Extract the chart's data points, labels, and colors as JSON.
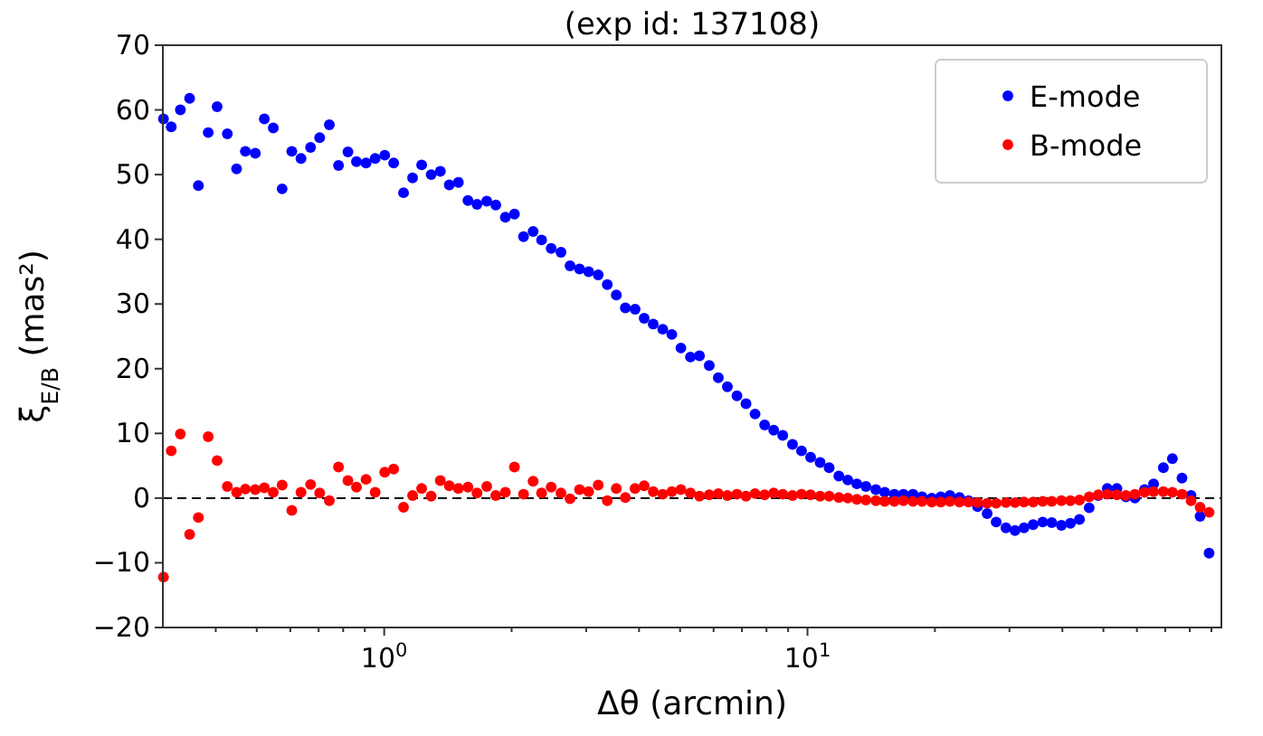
{
  "chart_data": {
    "type": "scatter",
    "title": "(exp id: 137108)",
    "xlabel": "Δθ (arcmin)",
    "ylabel": "ξ$_{E/B}$ (mas²)",
    "log": "x",
    "xlim": [
      0.3,
      95
    ],
    "ylim": [
      -20,
      70
    ],
    "xticks": [
      {
        "value": 0.4,
        "label": null
      },
      {
        "value": 0.5,
        "label": null
      },
      {
        "value": 0.6,
        "label": null
      },
      {
        "value": 0.7,
        "label": null
      },
      {
        "value": 0.8,
        "label": null
      },
      {
        "value": 0.9,
        "label": null
      },
      {
        "value": 1,
        "label": "10$^{0}$"
      },
      {
        "value": 2,
        "label": null
      },
      {
        "value": 3,
        "label": null
      },
      {
        "value": 4,
        "label": null
      },
      {
        "value": 5,
        "label": null
      },
      {
        "value": 6,
        "label": null
      },
      {
        "value": 7,
        "label": null
      },
      {
        "value": 8,
        "label": null
      },
      {
        "value": 9,
        "label": null
      },
      {
        "value": 10,
        "label": "10$^{1}$"
      },
      {
        "value": 20,
        "label": null
      },
      {
        "value": 30,
        "label": null
      },
      {
        "value": 40,
        "label": null
      },
      {
        "value": 50,
        "label": null
      },
      {
        "value": 60,
        "label": null
      },
      {
        "value": 70,
        "label": null
      },
      {
        "value": 80,
        "label": null
      },
      {
        "value": 90,
        "label": null
      }
    ],
    "yticks": [
      -20,
      -10,
      0,
      10,
      20,
      30,
      40,
      50,
      60,
      70
    ],
    "legend": "top right",
    "marker": "circle",
    "grid": false,
    "ref_lines": [
      {
        "axis": "y",
        "value": 0,
        "color": "#000000",
        "line_style": "dashed"
      }
    ],
    "x": [
      0.301,
      0.314,
      0.33,
      0.347,
      0.364,
      0.384,
      0.403,
      0.426,
      0.448,
      0.47,
      0.496,
      0.521,
      0.547,
      0.574,
      0.605,
      0.636,
      0.67,
      0.704,
      0.742,
      0.78,
      0.821,
      0.86,
      0.906,
      0.952,
      1.003,
      1.053,
      1.111,
      1.167,
      1.226,
      1.291,
      1.357,
      1.425,
      1.497,
      1.577,
      1.657,
      1.747,
      1.835,
      1.933,
      2.031,
      2.134,
      2.248,
      2.354,
      2.48,
      2.616,
      2.748,
      2.894,
      3.041,
      3.203,
      3.365,
      3.535,
      3.713,
      3.915,
      4.113,
      4.321,
      4.551,
      4.781,
      5.023,
      5.29,
      5.557,
      5.86,
      6.156,
      6.467,
      6.813,
      7.157,
      7.518,
      7.92,
      8.32,
      8.74,
      9.216,
      9.68,
      10.17,
      10.71,
      11.25,
      11.86,
      12.45,
      13.08,
      13.74,
      14.5,
      15.22,
      16.04,
      16.85,
      17.75,
      18.65,
      19.66,
      20.65,
      21.7,
      22.86,
      24.01,
      25.22,
      26.57,
      27.91,
      29.43,
      30.92,
      32.47,
      34.12,
      35.94,
      37.76,
      39.79,
      41.79,
      43.9,
      46.29,
      48.63,
      51.08,
      53.81,
      56.52,
      59.37,
      62.55,
      65.7,
      69.29,
      72.78,
      76.68,
      80.54,
      84.61,
      88.86
    ],
    "series": [
      {
        "name": "E-mode",
        "color": "#0000ff",
        "values": [
          58.6,
          57.4,
          60.0,
          61.8,
          48.3,
          56.5,
          60.5,
          56.3,
          50.9,
          53.6,
          53.3,
          58.6,
          57.2,
          47.8,
          53.6,
          52.5,
          54.2,
          55.7,
          57.7,
          51.4,
          53.5,
          52.0,
          51.8,
          52.5,
          53.0,
          51.8,
          47.2,
          49.5,
          51.5,
          50.0,
          50.5,
          48.4,
          48.8,
          46.0,
          45.4,
          45.9,
          45.3,
          43.4,
          43.9,
          40.4,
          41.2,
          39.9,
          38.6,
          38.0,
          35.9,
          35.4,
          35.0,
          34.5,
          33.0,
          31.4,
          29.4,
          29.2,
          27.8,
          26.9,
          26.1,
          25.3,
          23.2,
          21.8,
          22.0,
          20.5,
          18.6,
          17.2,
          15.8,
          14.6,
          13.0,
          11.3,
          10.5,
          9.7,
          8.3,
          7.3,
          6.3,
          5.5,
          4.7,
          3.4,
          2.8,
          2.2,
          1.8,
          1.3,
          0.9,
          0.6,
          0.6,
          0.6,
          0.2,
          0.0,
          0.2,
          0.4,
          0.1,
          -0.4,
          -1.3,
          -2.4,
          -3.7,
          -4.6,
          -5.0,
          -4.6,
          -4.1,
          -3.7,
          -3.8,
          -4.2,
          -3.9,
          -3.3,
          -1.5,
          0.4,
          1.5,
          1.5,
          0.2,
          0.0,
          1.3,
          2.2,
          4.7,
          6.1,
          3.1,
          0.4,
          -2.8,
          -8.5
        ]
      },
      {
        "name": "B-mode",
        "color": "#ff0000",
        "values": [
          -12.2,
          7.3,
          9.9,
          -5.6,
          -3.0,
          9.5,
          5.8,
          1.8,
          0.9,
          1.4,
          1.3,
          1.6,
          0.9,
          2.0,
          -1.9,
          0.9,
          2.1,
          0.8,
          -0.4,
          4.8,
          2.7,
          1.7,
          2.9,
          0.9,
          4.0,
          4.5,
          -1.4,
          0.4,
          1.5,
          0.3,
          2.7,
          1.9,
          1.5,
          1.7,
          0.8,
          1.8,
          0.4,
          0.9,
          4.8,
          0.6,
          2.6,
          0.8,
          1.7,
          0.8,
          -0.1,
          1.3,
          1.0,
          2.0,
          -0.4,
          1.5,
          0.1,
          1.5,
          1.9,
          1.0,
          0.6,
          1.0,
          1.3,
          0.8,
          0.3,
          0.5,
          0.7,
          0.4,
          0.6,
          0.3,
          0.7,
          0.5,
          0.8,
          0.6,
          0.4,
          0.6,
          0.5,
          0.3,
          0.3,
          0.1,
          0.0,
          -0.2,
          -0.3,
          -0.4,
          -0.5,
          -0.5,
          -0.4,
          -0.5,
          -0.5,
          -0.6,
          -0.6,
          -0.5,
          -0.6,
          -0.6,
          -0.7,
          -0.8,
          -0.8,
          -0.7,
          -0.7,
          -0.6,
          -0.6,
          -0.5,
          -0.5,
          -0.4,
          -0.4,
          -0.3,
          0.2,
          0.5,
          0.6,
          0.5,
          0.4,
          0.6,
          0.9,
          1.0,
          1.0,
          0.9,
          0.6,
          -0.4,
          -1.4,
          -2.2
        ]
      }
    ]
  }
}
